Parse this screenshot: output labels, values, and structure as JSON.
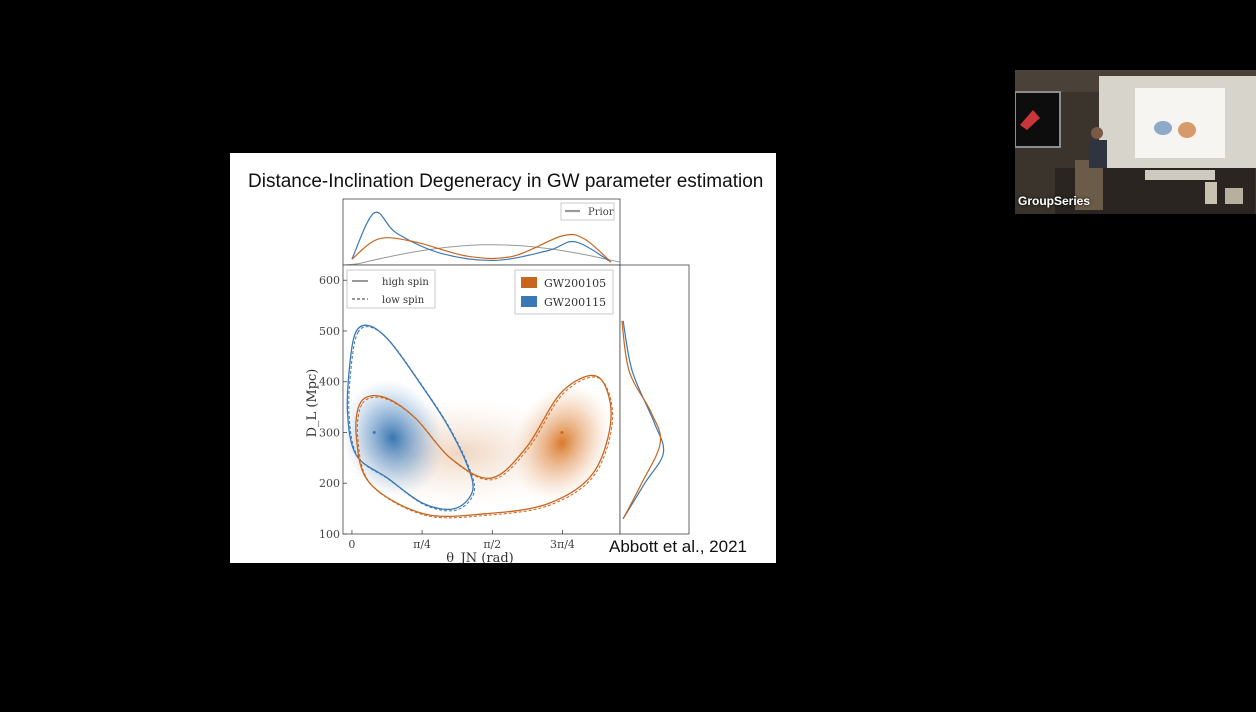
{
  "slide": {
    "title": "Distance-Inclination Degeneracy in GW parameter estimation",
    "citation": "Abbott et al., 2021"
  },
  "chart_data": {
    "type": "scatter",
    "title": "",
    "xlabel": "θ_JN (rad)",
    "ylabel": "D_L (Mpc)",
    "x_tick_labels": [
      "0",
      "π/4",
      "π/2",
      "3π/4"
    ],
    "x_ticks": [
      0,
      0.785,
      1.571,
      2.356
    ],
    "y_ticks": [
      100,
      200,
      300,
      400,
      500,
      600
    ],
    "xlim": [
      -0.1,
      3.0
    ],
    "ylim": [
      100,
      630
    ],
    "legend_lines": [
      {
        "label": "high spin",
        "style": "solid"
      },
      {
        "label": "low spin",
        "style": "dashed"
      }
    ],
    "legend_events": [
      {
        "label": "GW200105",
        "color": "#c8661f"
      },
      {
        "label": "GW200115",
        "color": "#3a78b5"
      }
    ],
    "legend_prior": {
      "label": "Prior",
      "color": "#999999"
    },
    "series": [
      {
        "name": "GW200115",
        "color": "#3a78b5",
        "peak": {
          "x": 0.25,
          "y": 300
        },
        "contour_90": [
          [
            0.05,
            500
          ],
          [
            0.2,
            510
          ],
          [
            0.42,
            480
          ],
          [
            0.75,
            400
          ],
          [
            1.05,
            320
          ],
          [
            1.28,
            240
          ],
          [
            1.35,
            185
          ],
          [
            1.15,
            150
          ],
          [
            0.8,
            160
          ],
          [
            0.4,
            210
          ],
          [
            0.05,
            255
          ],
          [
            -0.05,
            340
          ],
          [
            -0.02,
            440
          ]
        ],
        "marginal_theta": [
          [
            0,
            0.1
          ],
          [
            0.25,
            0.9
          ],
          [
            0.5,
            0.55
          ],
          [
            1.0,
            0.2
          ],
          [
            1.6,
            0.08
          ],
          [
            2.2,
            0.25
          ],
          [
            2.5,
            0.4
          ],
          [
            2.9,
            0.05
          ]
        ],
        "marginal_distance": [
          [
            130,
            0.05
          ],
          [
            200,
            0.4
          ],
          [
            260,
            0.7
          ],
          [
            320,
            0.55
          ],
          [
            420,
            0.2
          ],
          [
            520,
            0.05
          ]
        ]
      },
      {
        "name": "GW200105",
        "color": "#c8661f",
        "peak": {
          "x": 2.35,
          "y": 300
        },
        "contour_90": [
          [
            0.1,
            360
          ],
          [
            0.35,
            370
          ],
          [
            0.7,
            330
          ],
          [
            1.1,
            250
          ],
          [
            1.55,
            210
          ],
          [
            1.95,
            270
          ],
          [
            2.35,
            380
          ],
          [
            2.75,
            410
          ],
          [
            2.9,
            330
          ],
          [
            2.7,
            220
          ],
          [
            2.2,
            160
          ],
          [
            1.5,
            140
          ],
          [
            0.8,
            140
          ],
          [
            0.2,
            200
          ],
          [
            0.05,
            290
          ]
        ],
        "marginal_theta": [
          [
            0,
            0.1
          ],
          [
            0.3,
            0.45
          ],
          [
            0.7,
            0.4
          ],
          [
            1.3,
            0.15
          ],
          [
            1.8,
            0.15
          ],
          [
            2.35,
            0.5
          ],
          [
            2.6,
            0.45
          ],
          [
            2.9,
            0.05
          ]
        ],
        "marginal_distance": [
          [
            130,
            0.05
          ],
          [
            200,
            0.35
          ],
          [
            280,
            0.65
          ],
          [
            340,
            0.5
          ],
          [
            420,
            0.15
          ],
          [
            520,
            0.03
          ]
        ]
      }
    ]
  },
  "camera": {
    "label": "GroupSeries"
  }
}
